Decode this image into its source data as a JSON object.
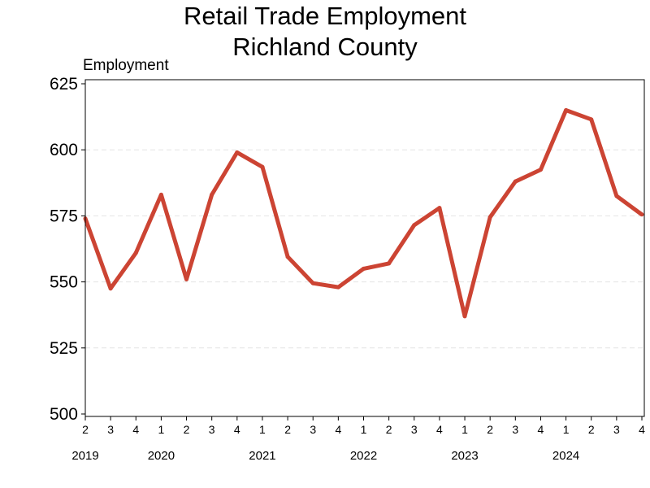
{
  "chart_data": {
    "type": "line",
    "title": [
      "Retail Trade Employment",
      "Richland County"
    ],
    "ylabel": "Employment",
    "xlabel": "",
    "ylim": [
      500,
      625
    ],
    "yticks": [
      500,
      525,
      550,
      575,
      600,
      625
    ],
    "grid": "horizontal dashed",
    "line_color": "#cc4433",
    "grid_color": "#e4e4e4",
    "categories": [
      "2",
      "3",
      "4",
      "1",
      "2",
      "3",
      "4",
      "1",
      "2",
      "3",
      "4",
      "1",
      "2",
      "3",
      "4",
      "1",
      "2",
      "3",
      "4",
      "1",
      "2",
      "3",
      "4"
    ],
    "year_labels": [
      {
        "label": "2019",
        "index": 0
      },
      {
        "label": "2020",
        "index": 3
      },
      {
        "label": "2021",
        "index": 7
      },
      {
        "label": "2022",
        "index": 11
      },
      {
        "label": "2023",
        "index": 15
      },
      {
        "label": "2024",
        "index": 19
      }
    ],
    "series": [
      {
        "values": [
          574,
          547.5,
          561,
          583,
          551,
          583,
          599,
          593.5,
          559.5,
          549.5,
          548,
          555,
          557,
          571.5,
          578,
          537,
          574.5,
          588,
          592.5,
          615,
          611.5,
          582.5,
          575.5
        ]
      }
    ]
  }
}
